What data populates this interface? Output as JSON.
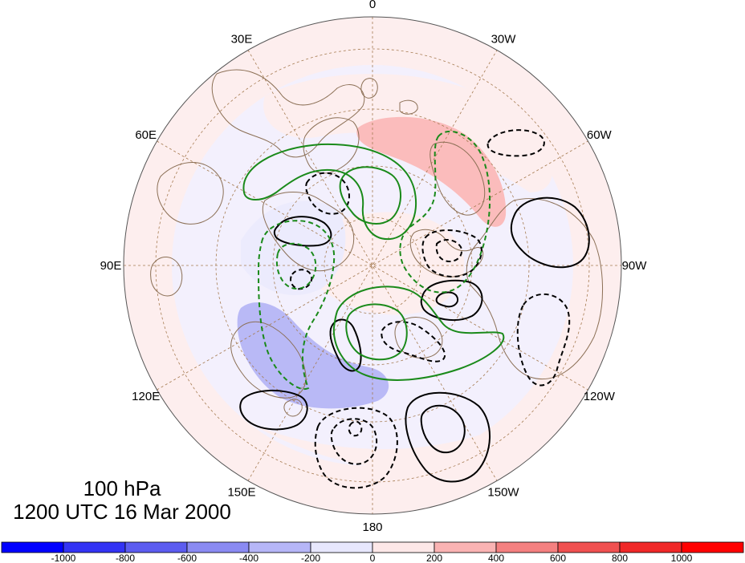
{
  "map": {
    "projection": "north-polar-stereographic",
    "level": "100 hPa",
    "valid_time": "1200 UTC 16 Mar 2000",
    "longitude_labels": [
      {
        "text": "0",
        "lon": 0
      },
      {
        "text": "30W",
        "lon": -30
      },
      {
        "text": "60W",
        "lon": -60
      },
      {
        "text": "90W",
        "lon": -90
      },
      {
        "text": "120W",
        "lon": -120
      },
      {
        "text": "150W",
        "lon": -150
      },
      {
        "text": "180",
        "lon": 180
      },
      {
        "text": "150E",
        "lon": 150
      },
      {
        "text": "120E",
        "lon": 120
      },
      {
        "text": "90E",
        "lon": 90
      },
      {
        "text": "60E",
        "lon": 60
      },
      {
        "text": "30E",
        "lon": 30
      }
    ],
    "graticule": {
      "meridian_step_deg": 30,
      "latitude_circles_deg": [
        30,
        45,
        60,
        75
      ],
      "style": "dashed",
      "color": "#a67c52"
    },
    "coastline_color": "#8b6f55"
  },
  "colorbar": {
    "ticks": [
      "-1000",
      "-800",
      "-600",
      "-400",
      "-200",
      "0",
      "200",
      "400",
      "600",
      "800",
      "1000"
    ],
    "colors": [
      "#0000ff",
      "#3333f4",
      "#5c5cf0",
      "#8a8af2",
      "#b6b6f7",
      "#e7e7fd",
      "#fde8e8",
      "#fab3b3",
      "#f48080",
      "#f05050",
      "#f02828",
      "#ff0000"
    ]
  },
  "contour_colors": {
    "solid_black": "#000000",
    "dashed_black": "#000000",
    "green": "#1a8a1a"
  }
}
